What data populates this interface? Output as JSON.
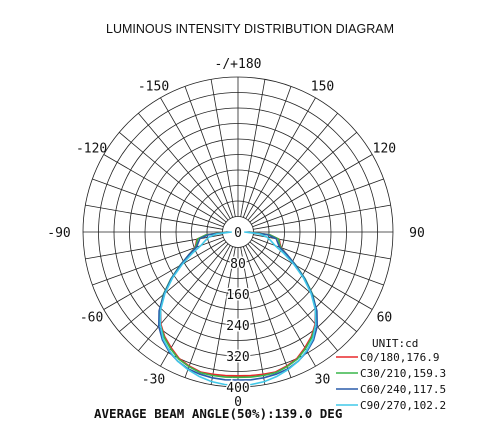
{
  "title": "LUMINOUS INTENSITY DISTRIBUTION DIAGRAM",
  "unit_label": "UNIT:cd",
  "footer": "AVERAGE BEAM ANGLE(50%):139.0 DEG",
  "chart_data": {
    "type": "polar",
    "title": "LUMINOUS INTENSITY DISTRIBUTION DIAGRAM",
    "angle_labels": [
      {
        "deg": 0,
        "text": "0"
      },
      {
        "deg": 30,
        "text": "30"
      },
      {
        "deg": 60,
        "text": "60"
      },
      {
        "deg": 90,
        "text": "90"
      },
      {
        "deg": 120,
        "text": "120"
      },
      {
        "deg": 150,
        "text": "150"
      },
      {
        "deg": 180,
        "text": "-/+180"
      },
      {
        "deg": -30,
        "text": "-30"
      },
      {
        "deg": -60,
        "text": "-60"
      },
      {
        "deg": -90,
        "text": "-90"
      },
      {
        "deg": -120,
        "text": "-120"
      },
      {
        "deg": -150,
        "text": "-150"
      }
    ],
    "radial_ticks": [
      0,
      80,
      160,
      240,
      320,
      400
    ],
    "rlim": [
      0,
      400
    ],
    "inner_hole": 40,
    "unit": "UNIT:cd",
    "series": [
      {
        "name": "C0/180,176.9",
        "color": "#e8282b",
        "r": [
          371,
          372,
          373,
          374,
          368,
          360,
          345,
          330,
          310,
          282,
          250,
          210,
          172,
          140,
          118,
          112,
          108,
          82,
          28
        ]
      },
      {
        "name": "C30/210,159.3",
        "color": "#39b54a",
        "r": [
          375,
          376,
          376,
          376,
          370,
          362,
          348,
          332,
          312,
          286,
          252,
          212,
          173,
          140,
          117,
          110,
          106,
          82,
          26
        ]
      },
      {
        "name": "C60/240,117.5",
        "color": "#2a5caa",
        "r": [
          382,
          383,
          382,
          380,
          376,
          368,
          356,
          340,
          318,
          288,
          250,
          210,
          172,
          140,
          114,
          106,
          100,
          76,
          22
        ]
      },
      {
        "name": "C90/270,102.2",
        "color": "#41c8e8",
        "r": [
          396,
          395,
          392,
          386,
          378,
          368,
          354,
          337,
          312,
          282,
          246,
          206,
          166,
          130,
          102,
          88,
          76,
          56,
          16
        ]
      }
    ],
    "gamma": [
      0,
      5,
      10,
      15,
      20,
      25,
      30,
      35,
      40,
      45,
      50,
      55,
      60,
      65,
      70,
      75,
      80,
      85,
      90
    ],
    "legend_position": "bottom-right",
    "footer": "AVERAGE BEAM ANGLE(50%):139.0 DEG"
  }
}
